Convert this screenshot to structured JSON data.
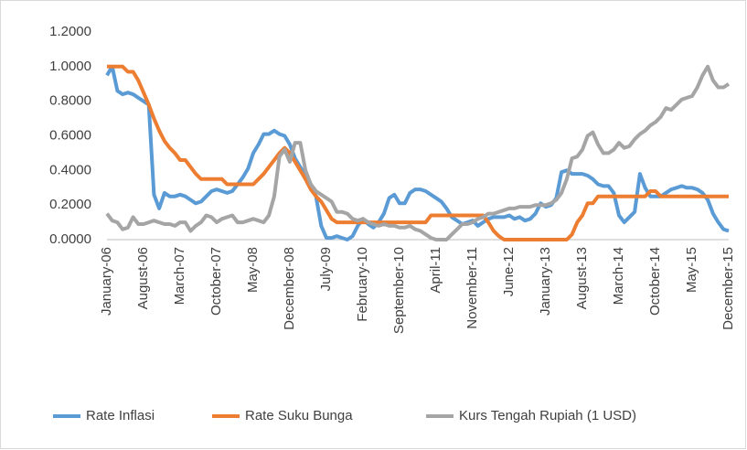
{
  "chart_data": {
    "type": "line",
    "categories": [
      "January-06",
      null,
      null,
      null,
      null,
      null,
      null,
      "August-06",
      null,
      null,
      null,
      null,
      null,
      null,
      "March-07",
      null,
      null,
      null,
      null,
      null,
      null,
      "October-07",
      null,
      null,
      null,
      null,
      null,
      null,
      "May-08",
      null,
      null,
      null,
      null,
      null,
      null,
      "December-08",
      null,
      null,
      null,
      null,
      null,
      null,
      "July-09",
      null,
      null,
      null,
      null,
      null,
      null,
      "February-10",
      null,
      null,
      null,
      null,
      null,
      null,
      "September-10",
      null,
      null,
      null,
      null,
      null,
      null,
      "April-11",
      null,
      null,
      null,
      null,
      null,
      null,
      "November-11",
      null,
      null,
      null,
      null,
      null,
      null,
      "June-12",
      null,
      null,
      null,
      null,
      null,
      null,
      "January-13",
      null,
      null,
      null,
      null,
      null,
      null,
      "August-13",
      null,
      null,
      null,
      null,
      null,
      null,
      "March-14",
      null,
      null,
      null,
      null,
      null,
      null,
      "October-14",
      null,
      null,
      null,
      null,
      null,
      null,
      "May-15",
      null,
      null,
      null,
      null,
      null,
      null,
      "December-15"
    ],
    "series": [
      {
        "name": "Rate Inflasi",
        "color": "#5b9bd5",
        "values": [
          0.95,
          1.0,
          0.86,
          0.84,
          0.85,
          0.84,
          0.82,
          0.8,
          0.78,
          0.26,
          0.18,
          0.27,
          0.25,
          0.25,
          0.26,
          0.25,
          0.23,
          0.21,
          0.22,
          0.25,
          0.28,
          0.29,
          0.28,
          0.27,
          0.28,
          0.32,
          0.36,
          0.41,
          0.5,
          0.55,
          0.61,
          0.61,
          0.63,
          0.61,
          0.6,
          0.55,
          0.47,
          0.42,
          0.37,
          0.32,
          0.25,
          0.08,
          0.01,
          0.01,
          0.02,
          0.01,
          0.0,
          0.02,
          0.08,
          0.12,
          0.09,
          0.07,
          0.1,
          0.15,
          0.24,
          0.26,
          0.21,
          0.21,
          0.27,
          0.29,
          0.29,
          0.28,
          0.26,
          0.24,
          0.22,
          0.18,
          0.13,
          0.11,
          0.09,
          0.1,
          0.11,
          0.08,
          0.1,
          0.12,
          0.13,
          0.13,
          0.13,
          0.14,
          0.12,
          0.13,
          0.11,
          0.12,
          0.15,
          0.21,
          0.19,
          0.2,
          0.24,
          0.39,
          0.4,
          0.38,
          0.38,
          0.38,
          0.37,
          0.35,
          0.32,
          0.31,
          0.31,
          0.27,
          0.14,
          0.1,
          0.13,
          0.16,
          0.38,
          0.3,
          0.25,
          0.25,
          0.25,
          0.27,
          0.29,
          0.3,
          0.31,
          0.3,
          0.3,
          0.29,
          0.27,
          0.23,
          0.15,
          0.1,
          0.06,
          0.05
        ]
      },
      {
        "name": "Rate Suku Bunga",
        "color": "#ed7d31",
        "values": [
          1.0,
          1.0,
          1.0,
          1.0,
          0.97,
          0.97,
          0.92,
          0.85,
          0.78,
          0.7,
          0.63,
          0.57,
          0.53,
          0.5,
          0.46,
          0.46,
          0.42,
          0.38,
          0.35,
          0.35,
          0.35,
          0.35,
          0.35,
          0.32,
          0.32,
          0.32,
          0.32,
          0.32,
          0.32,
          0.35,
          0.38,
          0.42,
          0.46,
          0.5,
          0.53,
          0.5,
          0.45,
          0.4,
          0.35,
          0.29,
          0.25,
          0.22,
          0.17,
          0.12,
          0.1,
          0.1,
          0.1,
          0.1,
          0.1,
          0.1,
          0.1,
          0.1,
          0.1,
          0.1,
          0.1,
          0.1,
          0.1,
          0.1,
          0.1,
          0.1,
          0.1,
          0.1,
          0.14,
          0.14,
          0.14,
          0.14,
          0.14,
          0.14,
          0.14,
          0.14,
          0.14,
          0.14,
          0.14,
          0.1,
          0.05,
          0.02,
          0.0,
          0.0,
          0.0,
          0.0,
          0.0,
          0.0,
          0.0,
          0.0,
          0.0,
          0.0,
          0.0,
          0.0,
          0.0,
          0.03,
          0.1,
          0.14,
          0.21,
          0.21,
          0.25,
          0.25,
          0.25,
          0.25,
          0.25,
          0.25,
          0.25,
          0.25,
          0.25,
          0.25,
          0.28,
          0.28,
          0.25,
          0.25,
          0.25,
          0.25,
          0.25,
          0.25,
          0.25,
          0.25,
          0.25,
          0.25,
          0.25,
          0.25,
          0.25,
          0.25
        ]
      },
      {
        "name": "Kurs Tengah Rupiah (1 USD)",
        "color": "#a5a5a5",
        "values": [
          0.15,
          0.11,
          0.1,
          0.06,
          0.07,
          0.13,
          0.09,
          0.09,
          0.1,
          0.11,
          0.1,
          0.09,
          0.09,
          0.08,
          0.1,
          0.1,
          0.05,
          0.08,
          0.1,
          0.14,
          0.13,
          0.1,
          0.12,
          0.13,
          0.14,
          0.1,
          0.1,
          0.11,
          0.12,
          0.11,
          0.1,
          0.14,
          0.25,
          0.48,
          0.52,
          0.45,
          0.56,
          0.56,
          0.4,
          0.32,
          0.28,
          0.26,
          0.24,
          0.22,
          0.16,
          0.16,
          0.15,
          0.12,
          0.11,
          0.12,
          0.1,
          0.09,
          0.08,
          0.09,
          0.08,
          0.08,
          0.07,
          0.07,
          0.08,
          0.06,
          0.05,
          0.03,
          0.01,
          0.0,
          0.0,
          0.0,
          0.03,
          0.06,
          0.09,
          0.09,
          0.1,
          0.12,
          0.13,
          0.15,
          0.15,
          0.16,
          0.17,
          0.18,
          0.18,
          0.19,
          0.19,
          0.19,
          0.2,
          0.2,
          0.2,
          0.21,
          0.23,
          0.27,
          0.35,
          0.47,
          0.48,
          0.52,
          0.6,
          0.62,
          0.55,
          0.5,
          0.5,
          0.52,
          0.56,
          0.53,
          0.54,
          0.58,
          0.61,
          0.63,
          0.66,
          0.68,
          0.71,
          0.76,
          0.75,
          0.78,
          0.81,
          0.82,
          0.83,
          0.88,
          0.95,
          1.0,
          0.92,
          0.88,
          0.88,
          0.9
        ]
      }
    ],
    "ylim": [
      0,
      1.2
    ],
    "yticks": [
      {
        "value": 0,
        "label": "0.0000"
      },
      {
        "value": 0.2,
        "label": "0.2000"
      },
      {
        "value": 0.4,
        "label": "0.4000"
      },
      {
        "value": 0.6,
        "label": "0.6000"
      },
      {
        "value": 0.8,
        "label": "0.8000"
      },
      {
        "value": 1.0,
        "label": "1.0000"
      },
      {
        "value": 1.2,
        "label": "1.2000"
      }
    ],
    "grid": false,
    "legend": "bottom"
  }
}
